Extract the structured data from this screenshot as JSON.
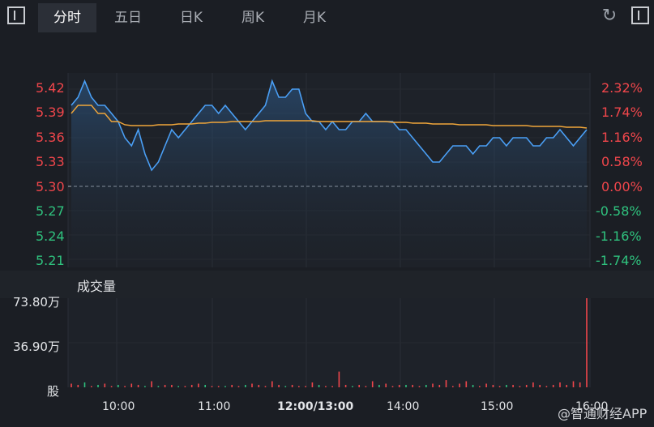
{
  "tabs": [
    {
      "label": "分时",
      "active": true
    },
    {
      "label": "五日",
      "active": false
    },
    {
      "label": "日K",
      "active": false
    },
    {
      "label": "周K",
      "active": false
    },
    {
      "label": "月K",
      "active": false
    }
  ],
  "icons": {
    "left_toggle": "panel-toggle-icon",
    "refresh": "refresh-icon",
    "right_toggle": "panel-toggle-icon"
  },
  "price_axis": [
    "5.42",
    "5.39",
    "5.36",
    "5.33",
    "5.30",
    "5.27",
    "5.24",
    "5.21"
  ],
  "pct_axis": [
    "2.32%",
    "1.74%",
    "1.16%",
    "0.58%",
    "0.00%",
    "-0.58%",
    "-1.16%",
    "-1.74%"
  ],
  "volume": {
    "title": "成交量",
    "axis": [
      "73.80万",
      "36.90万",
      "股"
    ]
  },
  "time_axis": [
    "10:00",
    "11:00",
    "12:00/13:00",
    "14:00",
    "15:00",
    "16:00"
  ],
  "watermark": "@智通财经APP",
  "colors": {
    "up": "#f0464b",
    "down": "#2fc27e",
    "price_line": "#4a9ff5",
    "avg_line": "#f0a63a",
    "background": "#1b1e24"
  },
  "chart_data": {
    "type": "line",
    "prev_close": 5.3,
    "ylim": [
      5.2,
      5.44
    ],
    "series": [
      {
        "name": "",
        "values": [
          5.4,
          5.41,
          5.43,
          5.41,
          5.4,
          5.4,
          5.39,
          5.38,
          5.36,
          5.35,
          5.37,
          5.34,
          5.32,
          5.33,
          5.35,
          5.37,
          5.36,
          5.37,
          5.38,
          5.39,
          5.4,
          5.4,
          5.39,
          5.4,
          5.39,
          5.38,
          5.37,
          5.38,
          5.39,
          5.4,
          5.43,
          5.41,
          5.41,
          5.42,
          5.42,
          5.39,
          5.38,
          5.38,
          5.37,
          5.38,
          5.37,
          5.37,
          5.38,
          5.38,
          5.39,
          5.38,
          5.38,
          5.38,
          5.38,
          5.37,
          5.37,
          5.36,
          5.35,
          5.34,
          5.33,
          5.33,
          5.34,
          5.35,
          5.35,
          5.35,
          5.34,
          5.35,
          5.35,
          5.36,
          5.36,
          5.35,
          5.36,
          5.36,
          5.36,
          5.35,
          5.35,
          5.36,
          5.36,
          5.37,
          5.36,
          5.35,
          5.36,
          5.37
        ]
      },
      {
        "name": "",
        "values": [
          5.39,
          5.4,
          5.4,
          5.4,
          5.39,
          5.39,
          5.38,
          5.38,
          5.376,
          5.375,
          5.375,
          5.375,
          5.375,
          5.376,
          5.376,
          5.376,
          5.377,
          5.377,
          5.377,
          5.378,
          5.378,
          5.379,
          5.379,
          5.379,
          5.38,
          5.38,
          5.38,
          5.38,
          5.38,
          5.381,
          5.381,
          5.381,
          5.381,
          5.381,
          5.381,
          5.381,
          5.381,
          5.38,
          5.38,
          5.38,
          5.38,
          5.38,
          5.38,
          5.38,
          5.38,
          5.38,
          5.38,
          5.38,
          5.379,
          5.379,
          5.379,
          5.378,
          5.378,
          5.378,
          5.377,
          5.377,
          5.377,
          5.377,
          5.376,
          5.376,
          5.376,
          5.376,
          5.376,
          5.375,
          5.375,
          5.375,
          5.375,
          5.375,
          5.375,
          5.374,
          5.374,
          5.374,
          5.374,
          5.374,
          5.373,
          5.373,
          5.373,
          5.372
        ]
      }
    ],
    "volume_ylim": [
      0,
      73.8
    ],
    "volume_unit": "万",
    "volume_values": [
      3,
      2,
      4,
      1,
      2,
      3,
      1,
      2,
      1,
      3,
      2,
      1,
      5,
      1,
      2,
      2,
      1,
      1,
      2,
      3,
      2,
      1,
      1,
      1,
      2,
      1,
      2,
      3,
      2,
      1,
      5,
      2,
      1,
      2,
      1,
      1,
      4,
      2,
      1,
      1,
      13,
      2,
      1,
      2,
      1,
      5,
      2,
      3,
      1,
      2,
      2,
      2,
      1,
      2,
      3,
      2,
      6,
      1,
      3,
      5,
      2,
      1,
      3,
      2,
      1,
      2,
      2,
      1,
      2,
      4,
      2,
      1,
      2,
      4,
      2,
      5,
      4,
      73.8
    ],
    "volume_colors": [
      "up",
      "up",
      "down",
      "up",
      "down",
      "up",
      "up",
      "down",
      "up",
      "up",
      "up",
      "down",
      "up",
      "down",
      "up",
      "up",
      "down",
      "up",
      "up",
      "up",
      "down",
      "up",
      "up",
      "down",
      "up",
      "up",
      "down",
      "up",
      "up",
      "up",
      "up",
      "up",
      "down",
      "up",
      "up",
      "up",
      "up",
      "down",
      "up",
      "up",
      "up",
      "up",
      "down",
      "up",
      "up",
      "up",
      "down",
      "up",
      "up",
      "up",
      "down",
      "up",
      "up",
      "down",
      "up",
      "up",
      "up",
      "up",
      "up",
      "up",
      "down",
      "up",
      "up",
      "up",
      "up",
      "down",
      "up",
      "up",
      "up",
      "up",
      "up",
      "up",
      "up",
      "up",
      "up",
      "up",
      "up",
      "up"
    ]
  }
}
